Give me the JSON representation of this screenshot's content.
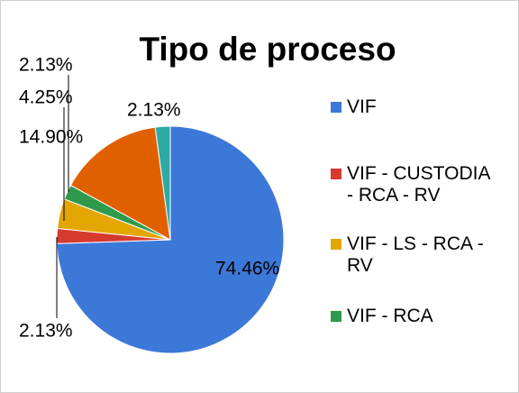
{
  "chart_data": {
    "type": "pie",
    "title": "Tipo de proceso",
    "categories": [
      "VIF",
      "VIF - CUSTODIA - RCA - RV",
      "VIF - LS - RCA - RV",
      "VIF - RCA",
      null,
      null
    ],
    "values": [
      74.46,
      2.13,
      4.25,
      2.13,
      14.9,
      2.13
    ],
    "value_labels": [
      "74.46%",
      "2.13%",
      "4.25%",
      "2.13%",
      "14.90%",
      "2.13%"
    ],
    "colors": [
      "#3c78d8",
      "#d63a2f",
      "#e3a600",
      "#2f9a4c",
      "#e06000",
      "#2fa9a5"
    ]
  }
}
